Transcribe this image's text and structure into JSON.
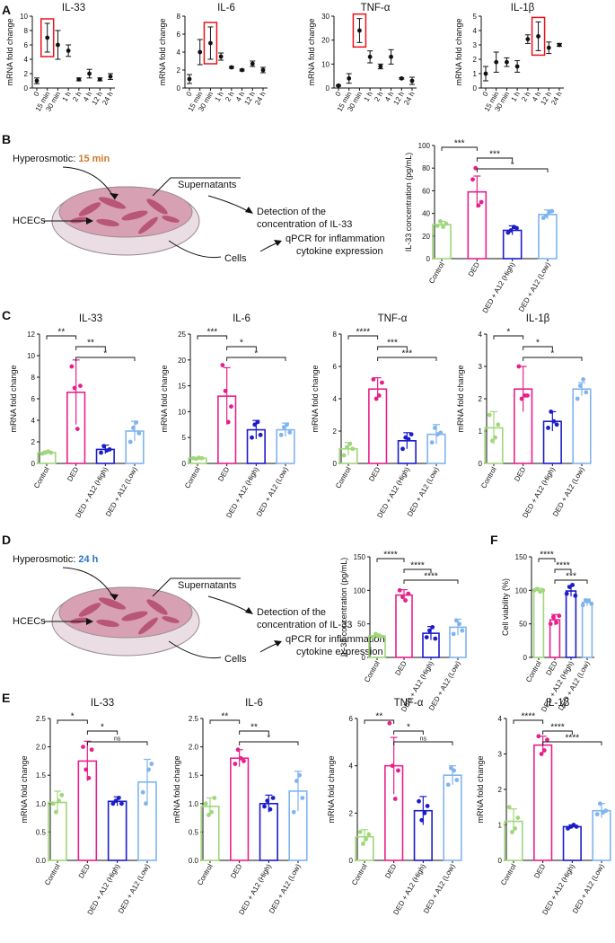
{
  "colors": {
    "control": "#9fd77a",
    "ded": "#e81f8b",
    "high": "#1c1cc9",
    "low": "#7fb4ef",
    "highlight": "#e8121b",
    "hyper_15": "#d0792b",
    "hyper_24": "#2a74c5"
  },
  "panel_letters": [
    "A",
    "B",
    "C",
    "D",
    "E",
    "F"
  ],
  "schematics": [
    {
      "id": "B",
      "hyper_label": "Hyperosmotic: ",
      "hyper_time": "15 min",
      "hcecs": "HCECs",
      "supernatants": "Supernatants",
      "cells": "Cells",
      "detect_line1": "Detection of the",
      "detect_line2": "concentration of IL-33",
      "qpcr_line1": "qPCR for inflammation",
      "qpcr_line2": "cytokine expression"
    },
    {
      "id": "D",
      "hyper_label": "Hyperosmotic: ",
      "hyper_time": "24 h",
      "hcecs": "HCECs",
      "supernatants": "Supernatants",
      "cells": "Cells",
      "detect_line1": "Detection of the",
      "detect_line2": "concentration of IL-33",
      "qpcr_line1": "qPCR for inflammation",
      "qpcr_line2": "cytokine expression"
    }
  ],
  "chart_data": [
    {
      "panel": "A",
      "type": "scatter",
      "title": "IL-33",
      "ylabel": "mRNA fold change",
      "categories": [
        "0",
        "15 min",
        "30 min",
        "1 h",
        "2 h",
        "4 h",
        "12 h",
        "24 h"
      ],
      "values": [
        1.0,
        7.0,
        6.0,
        5.2,
        1.2,
        2.0,
        1.2,
        1.6
      ],
      "errors": [
        0.4,
        2.0,
        2.0,
        0.8,
        0.2,
        0.6,
        0.2,
        0.4
      ],
      "highlight_index": 1,
      "ylim": [
        0,
        10
      ],
      "yticks": [
        0,
        2,
        4,
        6,
        8,
        10
      ]
    },
    {
      "panel": "A",
      "type": "scatter",
      "title": "IL-6",
      "ylabel": "mRNA fold change",
      "categories": [
        "0",
        "15 min",
        "30 min",
        "1 h",
        "2 h",
        "4 h",
        "12 h",
        "24 h"
      ],
      "values": [
        1.0,
        4.0,
        5.0,
        3.5,
        2.3,
        2.0,
        2.7,
        2.0
      ],
      "errors": [
        0.5,
        1.4,
        1.8,
        0.4,
        0.1,
        0.1,
        0.3,
        0.3
      ],
      "highlight_index": 2,
      "ylim": [
        0,
        8
      ],
      "yticks": [
        0,
        2,
        4,
        6,
        8
      ]
    },
    {
      "panel": "A",
      "type": "scatter",
      "title": "TNF-α",
      "ylabel": "mRNA fold change",
      "categories": [
        "0",
        "15 min",
        "30 min",
        "1 h",
        "2 h",
        "4 h",
        "12 h",
        "24 h"
      ],
      "values": [
        1.0,
        4.0,
        24.0,
        13.0,
        9.0,
        13.0,
        4.0,
        3.0
      ],
      "errors": [
        0.3,
        2.0,
        5.0,
        2.5,
        1.0,
        3.0,
        0.3,
        1.5
      ],
      "highlight_index": 2,
      "ylim": [
        0,
        30
      ],
      "yticks": [
        0,
        10,
        20,
        30
      ]
    },
    {
      "panel": "A",
      "type": "scatter",
      "title": "IL-1β",
      "ylabel": "mRNA fold change",
      "categories": [
        "0",
        "15 min",
        "30 min",
        "1 h",
        "2 h",
        "4 h",
        "12 h",
        "24 h"
      ],
      "values": [
        1.0,
        1.8,
        1.8,
        1.5,
        3.4,
        3.6,
        2.8,
        3.0
      ],
      "errors": [
        0.5,
        0.7,
        0.3,
        0.4,
        0.3,
        1.0,
        0.4,
        0.1
      ],
      "highlight_index": 5,
      "ylim": [
        0,
        5
      ],
      "yticks": [
        0,
        1,
        2,
        3,
        4,
        5
      ]
    },
    {
      "panel": "B",
      "type": "bar",
      "title": "",
      "ylabel": "IL-33 concentration (pg/mL)",
      "categories": [
        "Control",
        "DED",
        "DED + A12 (High)",
        "DED + A12 (Low)"
      ],
      "values": [
        30,
        59,
        25,
        39
      ],
      "errors": [
        3,
        14,
        4,
        4
      ],
      "points": [
        [
          29,
          33,
          28,
          31
        ],
        [
          70,
          80,
          47,
          50
        ],
        [
          23,
          25,
          28,
          27
        ],
        [
          36,
          38,
          41,
          42
        ]
      ],
      "ylim": [
        0,
        100
      ],
      "yticks": [
        0,
        20,
        40,
        60,
        80,
        100
      ],
      "sig": [
        {
          "from": 0,
          "to": 1,
          "label": "***",
          "level": 1
        },
        {
          "from": 1,
          "to": 2,
          "label": "***",
          "level": 0
        },
        {
          "from": 1,
          "to": 3,
          "label": "*",
          "level": 2
        }
      ]
    },
    {
      "panel": "C",
      "type": "bar",
      "title": "IL-33",
      "ylabel": "mRNA fold change",
      "categories": [
        "Control",
        "DED",
        "DED + A12 (High)",
        "DED + A12 (Low)"
      ],
      "values": [
        1.0,
        6.6,
        1.3,
        3.0
      ],
      "errors": [
        0.15,
        3.0,
        0.4,
        0.9
      ],
      "points": [
        [
          0.9,
          1.0,
          1.1,
          1.0
        ],
        [
          9.0,
          7.0,
          3.2,
          7.2
        ],
        [
          1.0,
          1.6,
          1.2,
          1.3
        ],
        [
          2.0,
          3.3,
          3.8,
          2.8
        ]
      ],
      "ylim": [
        0,
        12
      ],
      "yticks": [
        0,
        2,
        4,
        6,
        8,
        10,
        12
      ],
      "sig": [
        {
          "from": 0,
          "to": 1,
          "label": "**",
          "level": 1
        },
        {
          "from": 1,
          "to": 2,
          "label": "**",
          "level": 0
        },
        {
          "from": 1,
          "to": 3,
          "label": "*",
          "level": 2
        }
      ]
    },
    {
      "panel": "C",
      "type": "bar",
      "title": "IL-6",
      "ylabel": "mRNA fold change",
      "categories": [
        "Control",
        "DED",
        "DED + A12 (High)",
        "DED + A12 (Low)"
      ],
      "values": [
        1.0,
        13.0,
        6.5,
        6.5
      ],
      "errors": [
        0.1,
        5.5,
        1.8,
        1.3
      ],
      "points": [
        [
          1.0,
          0.9,
          1.1,
          1.0
        ],
        [
          19.0,
          14.0,
          8.0,
          11.0
        ],
        [
          5.0,
          7.5,
          8.0,
          5.5
        ],
        [
          5.5,
          7.0,
          7.5,
          6.0
        ]
      ],
      "ylim": [
        0,
        25
      ],
      "yticks": [
        0,
        5,
        10,
        15,
        20,
        25
      ],
      "sig": [
        {
          "from": 0,
          "to": 1,
          "label": "***",
          "level": 1
        },
        {
          "from": 1,
          "to": 2,
          "label": "*",
          "level": 0
        },
        {
          "from": 1,
          "to": 3,
          "label": "*",
          "level": 2
        }
      ]
    },
    {
      "panel": "C",
      "type": "bar",
      "title": "TNF-α",
      "ylabel": "mRNA fold change",
      "categories": [
        "Control",
        "DED",
        "DED + A12 (High)",
        "DED + A12 (Low)"
      ],
      "values": [
        0.9,
        4.6,
        1.4,
        1.8
      ],
      "errors": [
        0.4,
        0.7,
        0.5,
        0.6
      ],
      "points": [
        [
          0.5,
          1.0,
          1.2,
          0.9
        ],
        [
          5.2,
          4.0,
          4.2,
          5.0
        ],
        [
          0.9,
          1.6,
          1.5,
          1.8
        ],
        [
          1.3,
          2.2,
          1.8,
          1.9
        ]
      ],
      "ylim": [
        0,
        8
      ],
      "yticks": [
        0,
        2,
        4,
        6,
        8
      ],
      "sig": [
        {
          "from": 0,
          "to": 1,
          "label": "****",
          "level": 1
        },
        {
          "from": 1,
          "to": 2,
          "label": "***",
          "level": 0
        },
        {
          "from": 1,
          "to": 3,
          "label": "***",
          "level": 2
        }
      ]
    },
    {
      "panel": "C",
      "type": "bar",
      "title": "IL-1β",
      "ylabel": "mRNA fold change",
      "categories": [
        "Control",
        "DED",
        "DED + A12 (High)",
        "DED + A12 (Low)"
      ],
      "values": [
        1.1,
        2.3,
        1.3,
        2.3
      ],
      "errors": [
        0.5,
        0.7,
        0.3,
        0.2
      ],
      "points": [
        [
          1.5,
          0.7,
          0.8,
          1.2
        ],
        [
          3.0,
          2.0,
          2.1,
          2.1
        ],
        [
          1.1,
          1.6,
          1.3,
          1.2
        ],
        [
          2.0,
          2.4,
          2.6,
          2.2
        ]
      ],
      "ylim": [
        0,
        4
      ],
      "yticks": [
        0,
        1,
        2,
        3,
        4
      ],
      "sig": [
        {
          "from": 0,
          "to": 1,
          "label": "*",
          "level": 1
        },
        {
          "from": 1,
          "to": 2,
          "label": "*",
          "level": 0
        },
        {
          "from": 1,
          "to": 3,
          "label": "*",
          "level": 2
        }
      ]
    },
    {
      "panel": "D",
      "type": "bar",
      "title": "",
      "ylabel": "IL-33 concentration (pg/mL)",
      "categories": [
        "Control",
        "DED",
        "DED + A12 (High)",
        "DED + A12 (Low)"
      ],
      "values": [
        32,
        93,
        36,
        45
      ],
      "errors": [
        3,
        8,
        10,
        12
      ],
      "points": [
        [
          30,
          35,
          32,
          31
        ],
        [
          100,
          90,
          85,
          95
        ],
        [
          30,
          40,
          45,
          28
        ],
        [
          35,
          55,
          50,
          40
        ]
      ],
      "ylim": [
        0,
        150
      ],
      "yticks": [
        0,
        50,
        100,
        150
      ],
      "sig": [
        {
          "from": 0,
          "to": 1,
          "label": "****",
          "level": 1
        },
        {
          "from": 1,
          "to": 2,
          "label": "****",
          "level": 0
        },
        {
          "from": 1,
          "to": 3,
          "label": "****",
          "level": 2
        }
      ]
    },
    {
      "panel": "F",
      "type": "bar",
      "title": "",
      "ylabel": "Cell viability (%)",
      "categories": [
        "Control",
        "DED",
        "DED + A12 (High)",
        "DED + A12 (Low)"
      ],
      "values": [
        100,
        56,
        99,
        82
      ],
      "errors": [
        3,
        8,
        8,
        5
      ],
      "points": [
        [
          100,
          102,
          98,
          100
        ],
        [
          50,
          60,
          52,
          62
        ],
        [
          95,
          105,
          108,
          92
        ],
        [
          78,
          85,
          84,
          80
        ]
      ],
      "ylim": [
        0,
        150
      ],
      "yticks": [
        0,
        50,
        100,
        150
      ],
      "sig": [
        {
          "from": 0,
          "to": 1,
          "label": "****",
          "level": 1
        },
        {
          "from": 1,
          "to": 2,
          "label": "****",
          "level": 0
        },
        {
          "from": 1,
          "to": 3,
          "label": "***",
          "level": 2
        }
      ]
    },
    {
      "panel": "E",
      "type": "bar",
      "title": "IL-33",
      "ylabel": "mRNA fold change",
      "categories": [
        "Control",
        "DED",
        "DED + A12 (High)",
        "DED + A12 (Low)"
      ],
      "values": [
        1.02,
        1.75,
        1.04,
        1.38
      ],
      "errors": [
        0.2,
        0.35,
        0.08,
        0.4
      ],
      "points": [
        [
          1.0,
          0.85,
          1.05,
          1.15
        ],
        [
          2.0,
          1.6,
          1.45,
          1.95
        ],
        [
          1.0,
          1.05,
          1.1,
          1.0
        ],
        [
          1.2,
          1.0,
          1.6,
          1.7
        ]
      ],
      "ylim": [
        0,
        2.5
      ],
      "yticks": [
        0.0,
        0.5,
        1.0,
        1.5,
        2.0,
        2.5
      ],
      "sig": [
        {
          "from": 0,
          "to": 1,
          "label": "*",
          "level": 1
        },
        {
          "from": 1,
          "to": 2,
          "label": "*",
          "level": 0
        },
        {
          "from": 1,
          "to": 3,
          "label": "ns",
          "level": 2
        }
      ]
    },
    {
      "panel": "E",
      "type": "bar",
      "title": "IL-6",
      "ylabel": "mRNA fold change",
      "categories": [
        "Control",
        "DED",
        "DED + A12 (High)",
        "DED + A12 (Low)"
      ],
      "values": [
        0.95,
        1.8,
        1.0,
        1.22
      ],
      "errors": [
        0.15,
        0.15,
        0.15,
        0.35
      ],
      "points": [
        [
          1.0,
          0.8,
          0.85,
          1.1
        ],
        [
          1.7,
          1.95,
          1.8,
          1.75
        ],
        [
          0.95,
          1.05,
          0.9,
          1.1
        ],
        [
          0.85,
          1.4,
          1.5,
          1.1
        ]
      ],
      "ylim": [
        0,
        2.5
      ],
      "yticks": [
        0.0,
        0.5,
        1.0,
        1.5,
        2.0,
        2.5
      ],
      "sig": [
        {
          "from": 0,
          "to": 1,
          "label": "**",
          "level": 1
        },
        {
          "from": 1,
          "to": 2,
          "label": "**",
          "level": 0
        },
        {
          "from": 1,
          "to": 3,
          "label": "*",
          "level": 2
        }
      ]
    },
    {
      "panel": "E",
      "type": "bar",
      "title": "TNF-α",
      "ylabel": "mRNA fold change",
      "categories": [
        "Control",
        "DED",
        "DED + A12 (High)",
        "DED + A12 (Low)"
      ],
      "values": [
        1.0,
        4.0,
        2.1,
        3.6
      ],
      "errors": [
        0.3,
        1.2,
        0.6,
        0.4
      ],
      "points": [
        [
          1.2,
          0.7,
          0.9,
          1.1
        ],
        [
          5.8,
          4.0,
          2.6,
          3.8
        ],
        [
          2.5,
          1.7,
          2.0,
          2.3
        ],
        [
          3.2,
          3.9,
          3.8,
          3.4
        ]
      ],
      "ylim": [
        0,
        6
      ],
      "yticks": [
        0,
        2,
        4,
        6
      ],
      "sig": [
        {
          "from": 0,
          "to": 1,
          "label": "**",
          "level": 1
        },
        {
          "from": 1,
          "to": 2,
          "label": "*",
          "level": 0
        },
        {
          "from": 1,
          "to": 3,
          "label": "ns",
          "level": 2
        }
      ]
    },
    {
      "panel": "E",
      "type": "bar",
      "title": "IL-1β",
      "ylabel": "mRNA fold change",
      "categories": [
        "Control",
        "DED",
        "DED + A12 (High)",
        "DED + A12 (Low)"
      ],
      "values": [
        1.1,
        3.25,
        0.95,
        1.4
      ],
      "errors": [
        0.35,
        0.25,
        0.05,
        0.2
      ],
      "points": [
        [
          1.5,
          0.8,
          0.9,
          1.2
        ],
        [
          3.5,
          3.0,
          3.1,
          3.4
        ],
        [
          0.9,
          0.95,
          1.0,
          0.95
        ],
        [
          1.3,
          1.6,
          1.35,
          1.4
        ]
      ],
      "ylim": [
        0,
        4
      ],
      "yticks": [
        0,
        1,
        2,
        3,
        4
      ],
      "sig": [
        {
          "from": 0,
          "to": 1,
          "label": "****",
          "level": 1
        },
        {
          "from": 1,
          "to": 2,
          "label": "****",
          "level": 0
        },
        {
          "from": 1,
          "to": 3,
          "label": "****",
          "level": 2
        }
      ]
    }
  ]
}
